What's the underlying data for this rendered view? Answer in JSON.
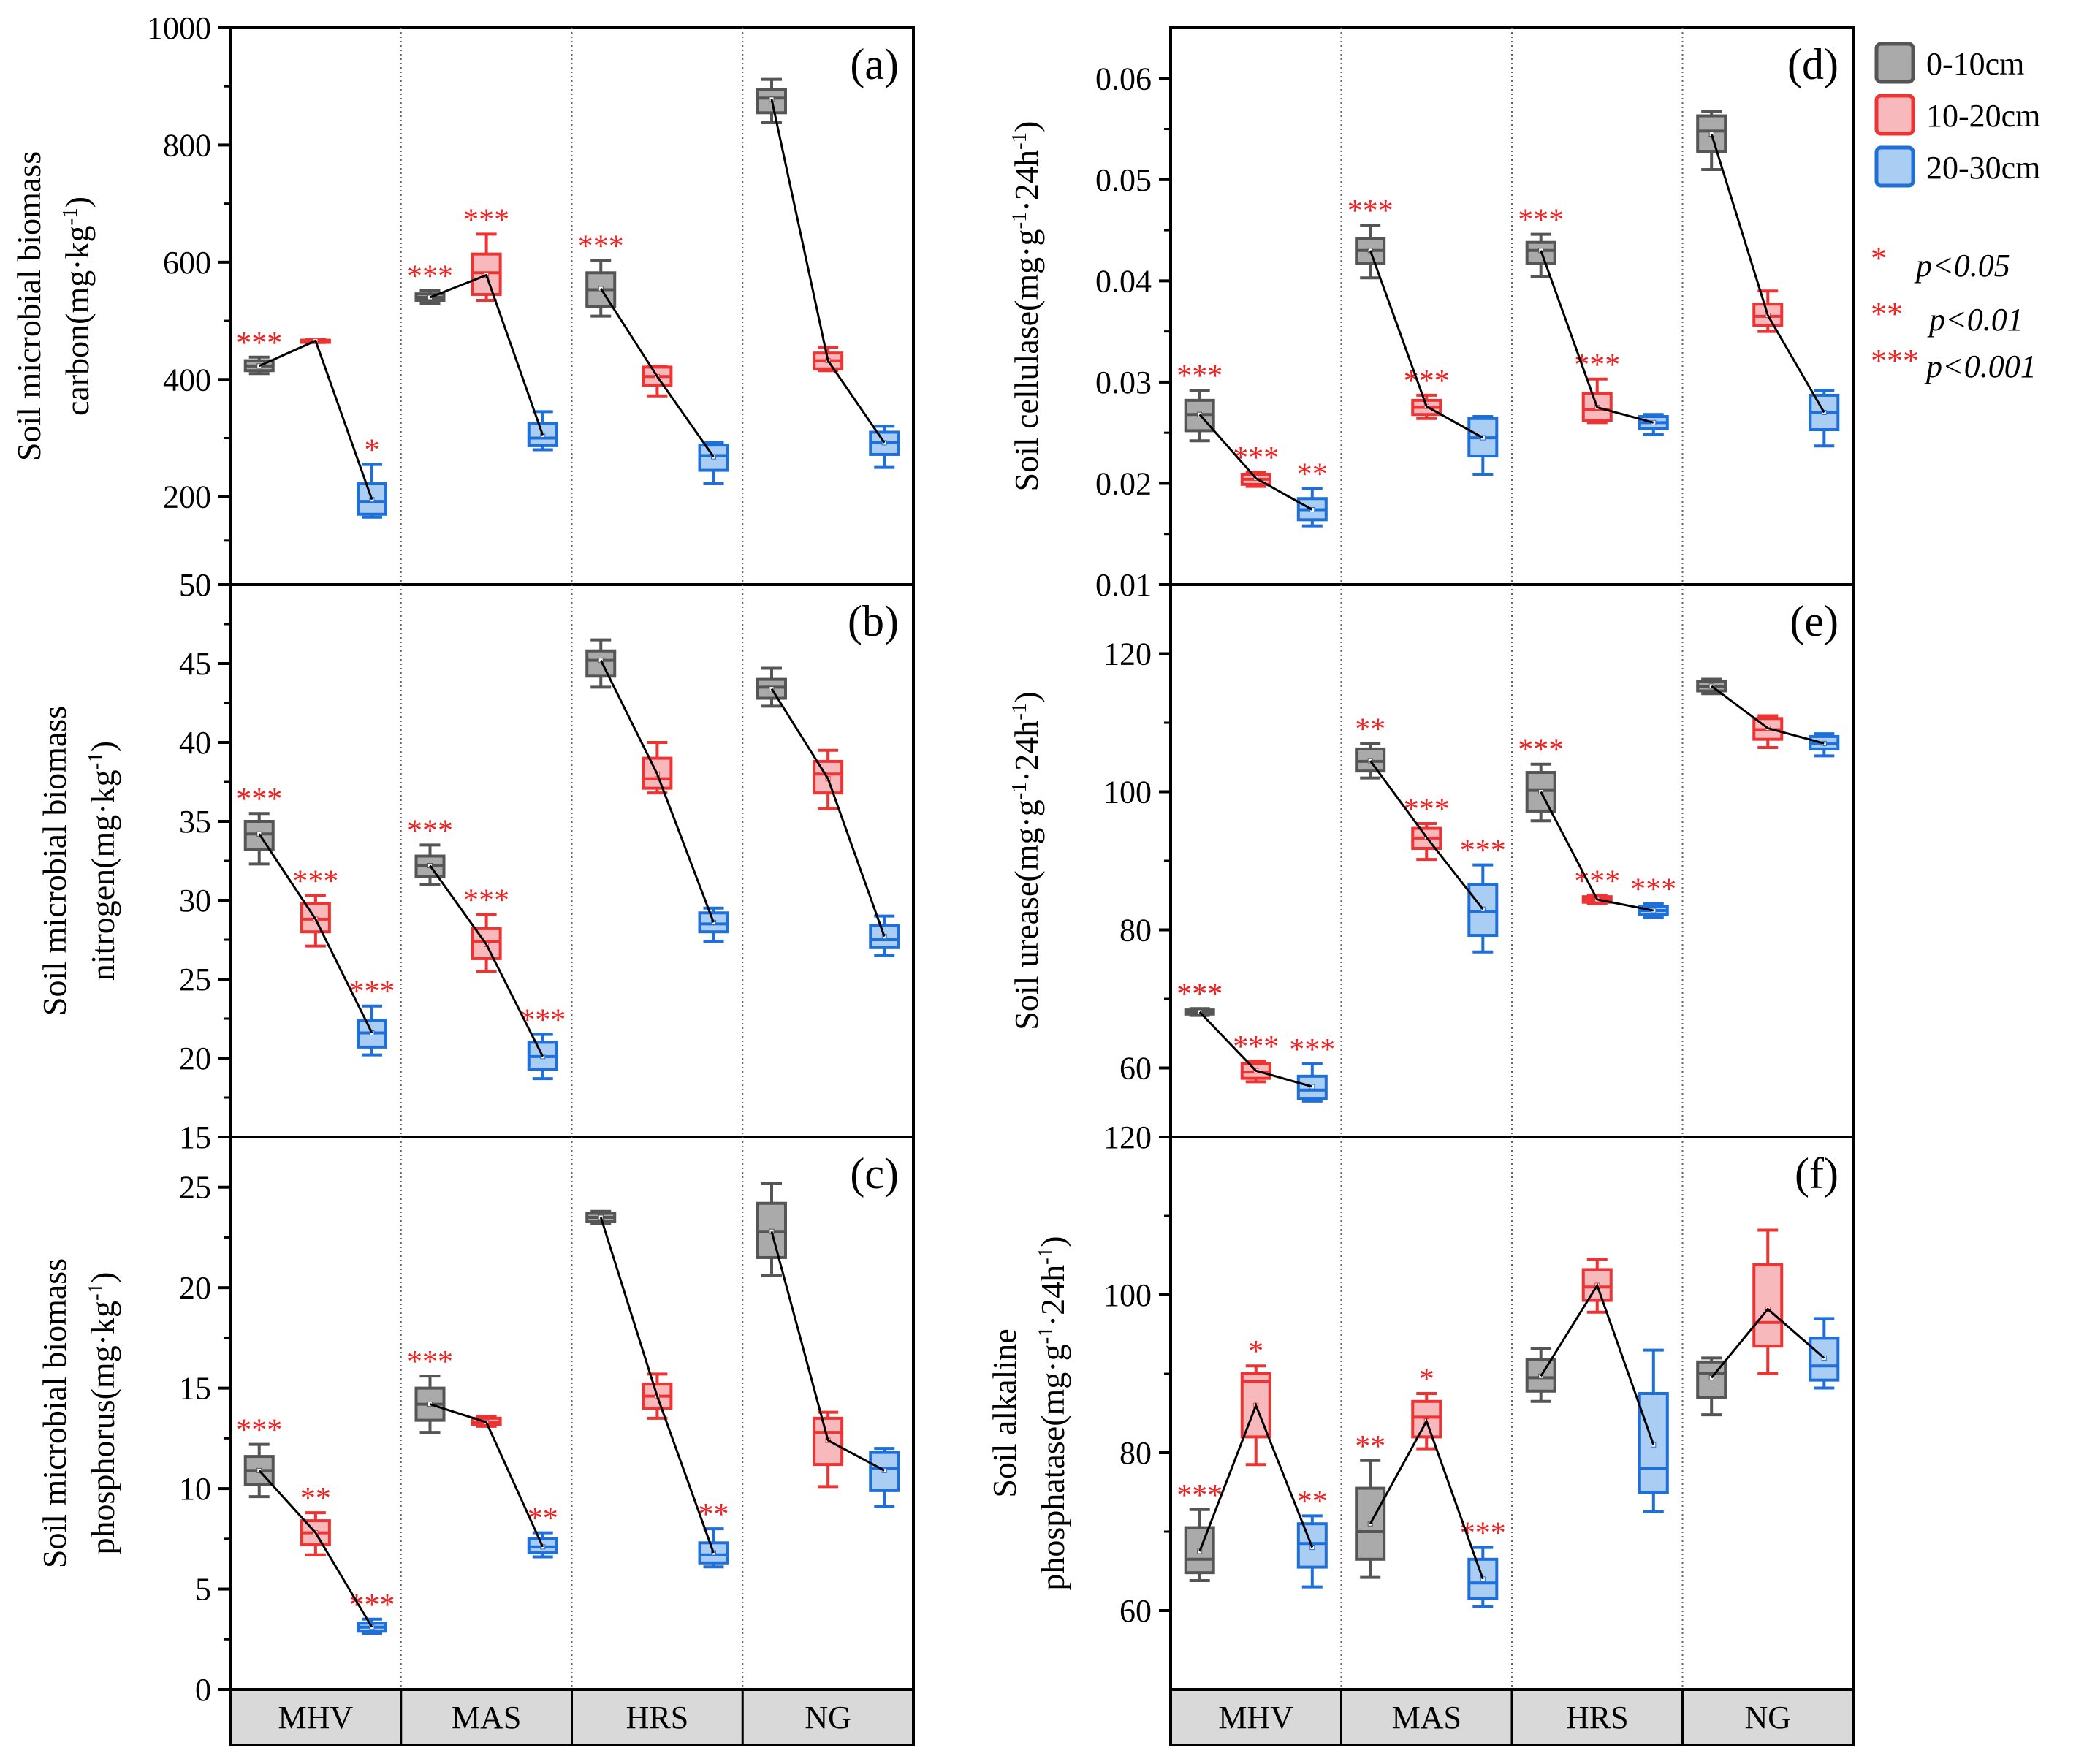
{
  "colors": {
    "depth_0_10": {
      "stroke": "#555555",
      "fill": "#aaaaaa"
    },
    "depth_10_20": {
      "stroke": "#ee3333",
      "fill": "#f8b9bd"
    },
    "depth_20_30": {
      "stroke": "#1e6fd9",
      "fill": "#a9cdf3"
    },
    "star": "#ee2222",
    "axis": "#000000",
    "category_strip": "#d9d9d9"
  },
  "legend": {
    "series": [
      "0-10cm",
      "10-20cm",
      "20-30cm"
    ],
    "significance": [
      {
        "stars": "*",
        "label": "p<0.05"
      },
      {
        "stars": "**",
        "label": "p<0.01"
      },
      {
        "stars": "***",
        "label": "p<0.001"
      }
    ]
  },
  "chart_data": [
    {
      "type": "box",
      "panel": "(a)",
      "ylabel_lines": [
        "Soil microbial biomass",
        "carbon(mg·kg-1)"
      ],
      "ylim": [
        50,
        1000
      ],
      "yticks": [
        50,
        200,
        400,
        600,
        800,
        1000
      ],
      "categories": [
        "MHV",
        "MAS",
        "HRS",
        "NG"
      ],
      "series_names": [
        "0-10cm",
        "10-20cm",
        "20-30cm"
      ],
      "boxes": [
        [
          {
            "min": 410,
            "q1": 415,
            "median": 423,
            "q3": 432,
            "max": 438,
            "mean": 423,
            "sig": "***"
          },
          {
            "min": 463,
            "q1": 465,
            "median": 466,
            "q3": 467,
            "max": 468,
            "mean": 466,
            "sig": ""
          },
          {
            "min": 165,
            "q1": 170,
            "median": 192,
            "q3": 222,
            "max": 255,
            "mean": 195,
            "sig": "*"
          }
        ],
        [
          {
            "min": 530,
            "q1": 535,
            "median": 540,
            "q3": 546,
            "max": 552,
            "mean": 540,
            "sig": "***"
          },
          {
            "min": 535,
            "q1": 545,
            "median": 582,
            "q3": 614,
            "max": 648,
            "mean": 578,
            "sig": "***"
          },
          {
            "min": 280,
            "q1": 287,
            "median": 300,
            "q3": 325,
            "max": 345,
            "mean": 305,
            "sig": ""
          }
        ],
        [
          {
            "min": 508,
            "q1": 525,
            "median": 553,
            "q3": 582,
            "max": 603,
            "mean": 555,
            "sig": "***"
          },
          {
            "min": 372,
            "q1": 390,
            "median": 405,
            "q3": 421,
            "max": 422,
            "mean": 405,
            "sig": ""
          },
          {
            "min": 222,
            "q1": 245,
            "median": 270,
            "q3": 288,
            "max": 292,
            "mean": 268,
            "sig": ""
          }
        ],
        [
          {
            "min": 838,
            "q1": 855,
            "median": 880,
            "q3": 895,
            "max": 912,
            "mean": 878,
            "sig": ""
          },
          {
            "min": 415,
            "q1": 418,
            "median": 432,
            "q3": 445,
            "max": 455,
            "mean": 432,
            "sig": ""
          },
          {
            "min": 250,
            "q1": 272,
            "median": 292,
            "q3": 310,
            "max": 320,
            "mean": 292,
            "sig": ""
          }
        ]
      ]
    },
    {
      "type": "box",
      "panel": "(b)",
      "ylabel_lines": [
        "Soil microbial biomass",
        "nitrogen(mg·kg-1)"
      ],
      "ylim": [
        15,
        50
      ],
      "yticks": [
        15,
        20,
        25,
        30,
        35,
        40,
        45,
        50
      ],
      "categories": [
        "MHV",
        "MAS",
        "HRS",
        "NG"
      ],
      "series_names": [
        "0-10cm",
        "10-20cm",
        "20-30cm"
      ],
      "boxes": [
        [
          {
            "min": 32.3,
            "q1": 33.2,
            "median": 34.2,
            "q3": 35.0,
            "max": 35.5,
            "mean": 34.2,
            "sig": "***"
          },
          {
            "min": 27.1,
            "q1": 28.0,
            "median": 28.8,
            "q3": 29.8,
            "max": 30.3,
            "mean": 28.8,
            "sig": "***"
          },
          {
            "min": 20.2,
            "q1": 20.7,
            "median": 21.6,
            "q3": 22.4,
            "max": 23.3,
            "mean": 21.6,
            "sig": "***"
          }
        ],
        [
          {
            "min": 31.0,
            "q1": 31.5,
            "median": 32.2,
            "q3": 32.8,
            "max": 33.5,
            "mean": 32.2,
            "sig": "***"
          },
          {
            "min": 25.5,
            "q1": 26.3,
            "median": 27.4,
            "q3": 28.2,
            "max": 29.1,
            "mean": 27.2,
            "sig": "***"
          },
          {
            "min": 18.7,
            "q1": 19.3,
            "median": 20.1,
            "q3": 21.0,
            "max": 21.5,
            "mean": 20.1,
            "sig": "***"
          }
        ],
        [
          {
            "min": 43.5,
            "q1": 44.2,
            "median": 45.2,
            "q3": 45.8,
            "max": 46.5,
            "mean": 45.2,
            "sig": ""
          },
          {
            "min": 36.8,
            "q1": 37.1,
            "median": 37.7,
            "q3": 39.0,
            "max": 40.0,
            "mean": 38.0,
            "sig": ""
          },
          {
            "min": 27.4,
            "q1": 28.0,
            "median": 28.5,
            "q3": 29.2,
            "max": 29.5,
            "mean": 28.6,
            "sig": ""
          }
        ],
        [
          {
            "min": 42.3,
            "q1": 42.8,
            "median": 43.5,
            "q3": 44.0,
            "max": 44.7,
            "mean": 43.4,
            "sig": ""
          },
          {
            "min": 35.8,
            "q1": 36.8,
            "median": 38.0,
            "q3": 38.8,
            "max": 39.5,
            "mean": 37.7,
            "sig": ""
          },
          {
            "min": 26.5,
            "q1": 27.0,
            "median": 27.5,
            "q3": 28.4,
            "max": 29.0,
            "mean": 27.7,
            "sig": ""
          }
        ]
      ]
    },
    {
      "type": "box",
      "panel": "(c)",
      "ylabel_lines": [
        "Soil microbial biomass",
        "phosphorus(mg·kg-1)"
      ],
      "ylim": [
        0,
        27.5
      ],
      "yticks": [
        0,
        5,
        10,
        15,
        20,
        25
      ],
      "categories": [
        "MHV",
        "MAS",
        "HRS",
        "NG"
      ],
      "series_names": [
        "0-10cm",
        "10-20cm",
        "20-30cm"
      ],
      "boxes": [
        [
          {
            "min": 9.6,
            "q1": 10.2,
            "median": 10.9,
            "q3": 11.6,
            "max": 12.2,
            "mean": 10.9,
            "sig": "***"
          },
          {
            "min": 6.7,
            "q1": 7.2,
            "median": 7.8,
            "q3": 8.4,
            "max": 8.8,
            "mean": 7.8,
            "sig": "**"
          },
          {
            "min": 2.8,
            "q1": 2.9,
            "median": 3.1,
            "q3": 3.3,
            "max": 3.5,
            "mean": 3.1,
            "sig": "***"
          }
        ],
        [
          {
            "min": 12.8,
            "q1": 13.4,
            "median": 14.2,
            "q3": 15.0,
            "max": 15.6,
            "mean": 14.2,
            "sig": "***"
          },
          {
            "min": 13.1,
            "q1": 13.2,
            "median": 13.3,
            "q3": 13.5,
            "max": 13.6,
            "mean": 13.3,
            "sig": ""
          },
          {
            "min": 6.6,
            "q1": 6.8,
            "median": 7.1,
            "q3": 7.5,
            "max": 7.8,
            "mean": 7.1,
            "sig": "**"
          }
        ],
        [
          {
            "min": 23.2,
            "q1": 23.3,
            "median": 23.5,
            "q3": 23.7,
            "max": 23.8,
            "mean": 23.5,
            "sig": ""
          },
          {
            "min": 13.5,
            "q1": 14.0,
            "median": 14.6,
            "q3": 15.2,
            "max": 15.7,
            "mean": 14.6,
            "sig": ""
          },
          {
            "min": 6.1,
            "q1": 6.3,
            "median": 6.7,
            "q3": 7.3,
            "max": 8.0,
            "mean": 6.8,
            "sig": "**"
          }
        ],
        [
          {
            "min": 20.6,
            "q1": 21.5,
            "median": 22.8,
            "q3": 24.2,
            "max": 25.2,
            "mean": 22.8,
            "sig": ""
          },
          {
            "min": 10.1,
            "q1": 11.2,
            "median": 12.8,
            "q3": 13.5,
            "max": 13.8,
            "mean": 12.4,
            "sig": ""
          },
          {
            "min": 9.1,
            "q1": 9.9,
            "median": 11.0,
            "q3": 11.8,
            "max": 12.0,
            "mean": 10.9,
            "sig": ""
          }
        ]
      ]
    },
    {
      "type": "box",
      "panel": "(d)",
      "ylabel_lines": [
        "Soil cellulase(mg·g-1·24h-1)"
      ],
      "ylim": [
        0.01,
        0.065
      ],
      "yticks": [
        0.01,
        0.02,
        0.03,
        0.04,
        0.05,
        0.06
      ],
      "categories": [
        "MHV",
        "MAS",
        "HRS",
        "NG"
      ],
      "series_names": [
        "0-10cm",
        "10-20cm",
        "20-30cm"
      ],
      "boxes": [
        [
          {
            "min": 0.0242,
            "q1": 0.0252,
            "median": 0.0268,
            "q3": 0.0282,
            "max": 0.0292,
            "mean": 0.0268,
            "sig": "***"
          },
          {
            "min": 0.0197,
            "q1": 0.0199,
            "median": 0.0204,
            "q3": 0.0209,
            "max": 0.0211,
            "mean": 0.0205,
            "sig": "***"
          },
          {
            "min": 0.0158,
            "q1": 0.0164,
            "median": 0.0174,
            "q3": 0.0185,
            "max": 0.0195,
            "mean": 0.0174,
            "sig": "**"
          }
        ],
        [
          {
            "min": 0.0403,
            "q1": 0.0417,
            "median": 0.043,
            "q3": 0.0442,
            "max": 0.0455,
            "mean": 0.043,
            "sig": "***"
          },
          {
            "min": 0.0264,
            "q1": 0.0268,
            "median": 0.0275,
            "q3": 0.0282,
            "max": 0.0287,
            "mean": 0.0276,
            "sig": "***"
          },
          {
            "min": 0.0209,
            "q1": 0.0227,
            "median": 0.0245,
            "q3": 0.0264,
            "max": 0.0266,
            "mean": 0.0245,
            "sig": ""
          }
        ],
        [
          {
            "min": 0.0404,
            "q1": 0.0417,
            "median": 0.043,
            "q3": 0.0438,
            "max": 0.0446,
            "mean": 0.043,
            "sig": "***"
          },
          {
            "min": 0.026,
            "q1": 0.0262,
            "median": 0.0273,
            "q3": 0.0289,
            "max": 0.0303,
            "mean": 0.0275,
            "sig": "***"
          },
          {
            "min": 0.0248,
            "q1": 0.0254,
            "median": 0.026,
            "q3": 0.0266,
            "max": 0.0268,
            "mean": 0.026,
            "sig": ""
          }
        ],
        [
          {
            "min": 0.051,
            "q1": 0.0528,
            "median": 0.0548,
            "q3": 0.0563,
            "max": 0.0567,
            "mean": 0.0545,
            "sig": ""
          },
          {
            "min": 0.035,
            "q1": 0.0356,
            "median": 0.0365,
            "q3": 0.0377,
            "max": 0.039,
            "mean": 0.0366,
            "sig": ""
          },
          {
            "min": 0.0237,
            "q1": 0.0253,
            "median": 0.027,
            "q3": 0.0287,
            "max": 0.0292,
            "mean": 0.027,
            "sig": ""
          }
        ]
      ]
    },
    {
      "type": "box",
      "panel": "(e)",
      "ylabel_lines": [
        "Soil urease(mg·g-1·24h-1)"
      ],
      "ylim": [
        50,
        130
      ],
      "yticks": [
        60,
        80,
        100,
        120
      ],
      "categories": [
        "MHV",
        "MAS",
        "HRS",
        "NG"
      ],
      "series_names": [
        "0-10cm",
        "10-20cm",
        "20-30cm"
      ],
      "boxes": [
        [
          {
            "min": 67.6,
            "q1": 67.8,
            "median": 68.1,
            "q3": 68.4,
            "max": 68.6,
            "mean": 68.1,
            "sig": "***"
          },
          {
            "min": 58.0,
            "q1": 58.5,
            "median": 59.4,
            "q3": 60.6,
            "max": 61.0,
            "mean": 59.6,
            "sig": "***"
          },
          {
            "min": 55.2,
            "q1": 55.6,
            "median": 56.8,
            "q3": 58.8,
            "max": 60.6,
            "mean": 57.3,
            "sig": "***"
          }
        ],
        [
          {
            "min": 102.0,
            "q1": 103.0,
            "median": 104.4,
            "q3": 106.2,
            "max": 107.0,
            "mean": 104.5,
            "sig": "**"
          },
          {
            "min": 90.2,
            "q1": 91.8,
            "median": 93.3,
            "q3": 94.7,
            "max": 95.4,
            "mean": 93.4,
            "sig": "***"
          },
          {
            "min": 76.8,
            "q1": 79.2,
            "median": 82.6,
            "q3": 86.6,
            "max": 89.4,
            "mean": 83.0,
            "sig": "***"
          }
        ],
        [
          {
            "min": 95.8,
            "q1": 97.2,
            "median": 100.2,
            "q3": 102.8,
            "max": 104.0,
            "mean": 100.0,
            "sig": "***"
          },
          {
            "min": 83.8,
            "q1": 84.0,
            "median": 84.4,
            "q3": 84.8,
            "max": 85.0,
            "mean": 84.4,
            "sig": "***"
          },
          {
            "min": 81.8,
            "q1": 82.2,
            "median": 82.8,
            "q3": 83.4,
            "max": 83.8,
            "mean": 82.8,
            "sig": "***"
          }
        ],
        [
          {
            "min": 114.2,
            "q1": 114.6,
            "median": 115.2,
            "q3": 116.0,
            "max": 116.3,
            "mean": 115.3,
            "sig": ""
          },
          {
            "min": 106.4,
            "q1": 107.6,
            "median": 109.0,
            "q3": 110.6,
            "max": 111.0,
            "mean": 109.2,
            "sig": ""
          },
          {
            "min": 105.2,
            "q1": 106.2,
            "median": 107.0,
            "q3": 108.0,
            "max": 108.4,
            "mean": 107.0,
            "sig": ""
          }
        ]
      ]
    },
    {
      "type": "box",
      "panel": "(f)",
      "ylabel_lines": [
        "Soil alkaline",
        "phosphatase(mg·g-1·24h-1)"
      ],
      "ylim": [
        50,
        120
      ],
      "yticks": [
        60,
        80,
        100,
        120
      ],
      "categories": [
        "MHV",
        "MAS",
        "HRS",
        "NG"
      ],
      "series_names": [
        "0-10cm",
        "10-20cm",
        "20-30cm"
      ],
      "boxes": [
        [
          {
            "min": 63.8,
            "q1": 64.8,
            "median": 66.5,
            "q3": 70.5,
            "max": 72.8,
            "mean": 67.5,
            "sig": "***"
          },
          {
            "min": 78.5,
            "q1": 82.0,
            "median": 89.0,
            "q3": 90.0,
            "max": 91.0,
            "mean": 86.0,
            "sig": "*"
          },
          {
            "min": 63.0,
            "q1": 65.5,
            "median": 68.5,
            "q3": 71.0,
            "max": 72.0,
            "mean": 68.0,
            "sig": "**"
          }
        ],
        [
          {
            "min": 64.2,
            "q1": 66.5,
            "median": 70.0,
            "q3": 75.5,
            "max": 79.0,
            "mean": 71.0,
            "sig": "**"
          },
          {
            "min": 80.5,
            "q1": 82.0,
            "median": 84.5,
            "q3": 86.5,
            "max": 87.5,
            "mean": 84.0,
            "sig": "*"
          },
          {
            "min": 60.5,
            "q1": 61.5,
            "median": 63.5,
            "q3": 66.5,
            "max": 68.0,
            "mean": 64.0,
            "sig": "***"
          }
        ],
        [
          {
            "min": 86.5,
            "q1": 87.8,
            "median": 89.5,
            "q3": 91.8,
            "max": 93.2,
            "mean": 89.7,
            "sig": ""
          },
          {
            "min": 97.8,
            "q1": 99.3,
            "median": 101.0,
            "q3": 103.2,
            "max": 104.5,
            "mean": 101.2,
            "sig": ""
          },
          {
            "min": 72.5,
            "q1": 75.0,
            "median": 78.0,
            "q3": 87.5,
            "max": 93.0,
            "mean": 81.0,
            "sig": ""
          }
        ],
        [
          {
            "min": 84.8,
            "q1": 87.0,
            "median": 90.0,
            "q3": 91.5,
            "max": 92.0,
            "mean": 89.5,
            "sig": ""
          },
          {
            "min": 90.0,
            "q1": 93.5,
            "median": 96.5,
            "q3": 103.8,
            "max": 108.2,
            "mean": 98.2,
            "sig": ""
          },
          {
            "min": 88.2,
            "q1": 89.2,
            "median": 91.0,
            "q3": 94.5,
            "max": 97.0,
            "mean": 92.0,
            "sig": ""
          }
        ]
      ]
    }
  ]
}
